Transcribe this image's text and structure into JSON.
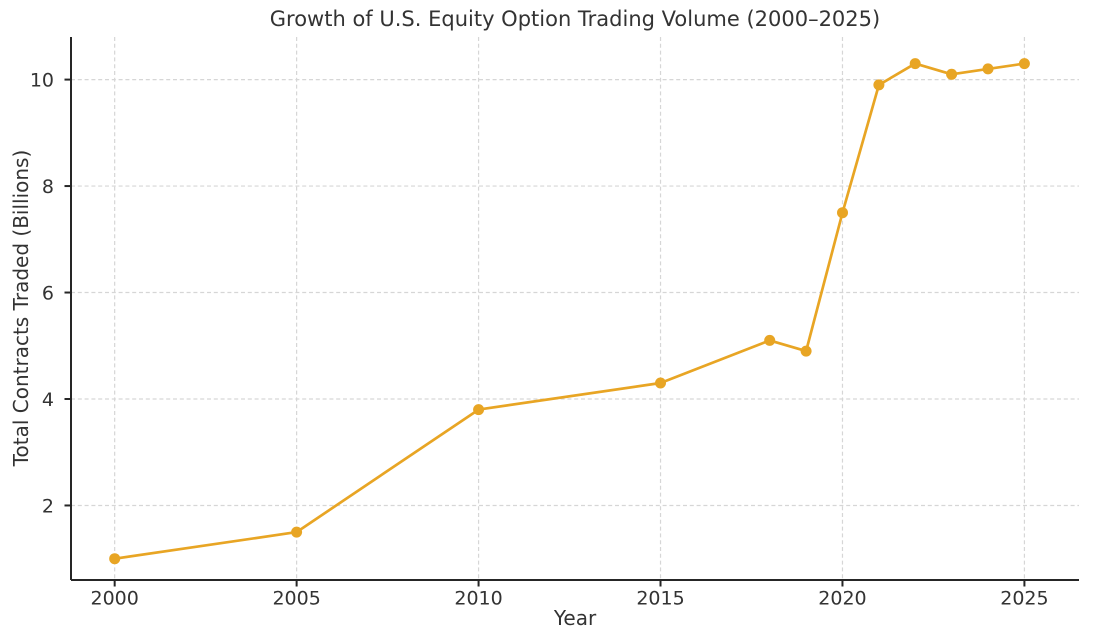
{
  "chart_data": {
    "type": "line",
    "title": "Growth of U.S. Equity Option Trading Volume (2000–2025)",
    "xlabel": "Year",
    "ylabel": "Total Contracts Traded (Billions)",
    "x": [
      2000,
      2005,
      2010,
      2015,
      2018,
      2019,
      2020,
      2021,
      2022,
      2023,
      2024,
      2025
    ],
    "values": [
      1.0,
      1.5,
      3.8,
      4.3,
      5.1,
      4.9,
      7.5,
      9.9,
      10.3,
      10.1,
      10.2,
      10.3
    ],
    "xticks": [
      2000,
      2005,
      2010,
      2015,
      2020,
      2025
    ],
    "yticks": [
      2,
      4,
      6,
      8,
      10
    ],
    "xtick_labels": [
      "2000",
      "2005",
      "2010",
      "2015",
      "2020",
      "2025"
    ],
    "ytick_labels": [
      "2",
      "4",
      "6",
      "8",
      "10"
    ],
    "xlim": [
      1998.8,
      2026.5
    ],
    "ylim": [
      0.6,
      10.8
    ],
    "grid": true,
    "grid_style": "dashed",
    "legend": false,
    "line_color": "#E8A524",
    "marker": "circle",
    "marker_color": "#E8A524",
    "grid_color": "#D6D6D6",
    "axis_color": "#262626",
    "text_color": "#333333",
    "background_color": "#FFFFFF"
  }
}
